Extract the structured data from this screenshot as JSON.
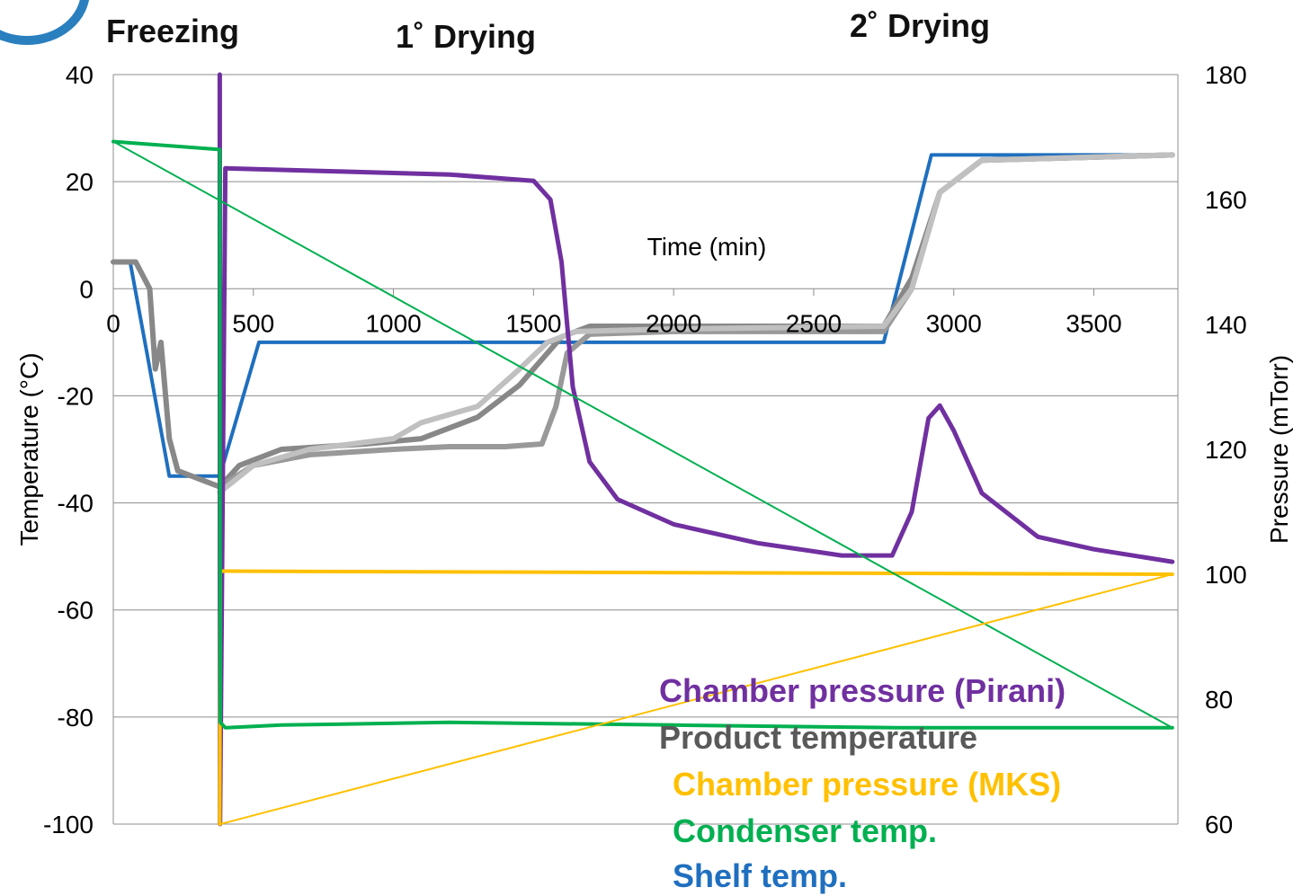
{
  "phases": [
    "Freezing",
    "1˚ Drying",
    "2˚ Drying"
  ],
  "chart_data": {
    "type": "line",
    "xlabel": "Time (min)",
    "ylabel_left": "Temperature (°C)",
    "ylabel_right": "Pressure (mTorr)",
    "xlim": [
      0,
      3800
    ],
    "ylim_left": [
      -100,
      40
    ],
    "ylim_right": [
      60,
      180
    ],
    "x_ticks": [
      0,
      500,
      1000,
      1500,
      2000,
      2500,
      3000,
      3500
    ],
    "y_ticks_left": [
      40,
      20,
      0,
      -20,
      -40,
      -60,
      -80,
      -100
    ],
    "y_ticks_right": [
      180,
      160,
      140,
      120,
      100,
      80,
      60
    ],
    "grid": true,
    "legend_position": "bottom-right",
    "series": [
      {
        "name": "Shelf temp.",
        "color": "#1f6fbf",
        "axis": "left",
        "x": [
          0,
          60,
          120,
          200,
          380,
          520,
          2750,
          2920,
          3780
        ],
        "values": [
          5,
          5,
          -12,
          -35,
          -35,
          -10,
          -10,
          25,
          25
        ]
      },
      {
        "name": "Product temperature",
        "color": "#888888",
        "axis": "left",
        "x": [
          0,
          80,
          130,
          150,
          170,
          200,
          230,
          380,
          450,
          600,
          900,
          1100,
          1300,
          1450,
          1600,
          1700,
          2000,
          2750,
          2850,
          2950,
          3100,
          3780
        ],
        "values": [
          5,
          5,
          0,
          -15,
          -10,
          -28,
          -34,
          -37,
          -33,
          -30,
          -29,
          -28,
          -24,
          -18,
          -9,
          -7,
          -7,
          -7,
          2,
          18,
          24,
          25
        ]
      },
      {
        "name": "Product temperature",
        "color": "#999999",
        "axis": "left",
        "x": [
          380,
          500,
          700,
          1000,
          1200,
          1400,
          1530,
          1580,
          1620,
          1700,
          2000,
          2750,
          2850,
          2950,
          3100,
          3780
        ],
        "values": [
          -37,
          -33,
          -31,
          -30,
          -29.5,
          -29.5,
          -29,
          -22,
          -12,
          -8.5,
          -8,
          -8,
          0,
          18,
          24,
          25
        ]
      },
      {
        "name": "Product temperature",
        "color": "#c0c0c0",
        "axis": "left",
        "x": [
          380,
          500,
          700,
          1000,
          1100,
          1300,
          1450,
          1550,
          1650,
          2000,
          2750,
          2850,
          2950,
          3100,
          3780
        ],
        "values": [
          -38,
          -33,
          -30,
          -28,
          -25,
          -22,
          -15,
          -10,
          -8,
          -7.5,
          -7,
          0,
          18,
          24,
          25
        ]
      },
      {
        "name": "Chamber pressure (Pirani)",
        "color": "#7030a0",
        "axis": "right",
        "x": [
          380,
          381,
          400,
          800,
          1200,
          1500,
          1560,
          1600,
          1640,
          1700,
          1800,
          2000,
          2300,
          2600,
          2780,
          2850,
          2910,
          2950,
          3000,
          3100,
          3300,
          3500,
          3780
        ],
        "values": [
          180,
          60,
          165,
          164.5,
          164,
          163,
          160,
          150,
          130,
          118,
          112,
          108,
          105,
          103,
          103,
          110,
          125,
          127,
          123,
          113,
          106,
          104,
          102
        ]
      },
      {
        "name": "Chamber pressure (MKS)",
        "color": "#ffc000",
        "axis": "right",
        "x": [
          380,
          382,
          3780
        ],
        "values": [
          60,
          100.5,
          100
        ]
      },
      {
        "name": "Condenser temp.",
        "color": "#00b050",
        "axis": "left",
        "x": [
          0,
          380,
          382,
          400,
          600,
          1200,
          2000,
          2800,
          3780
        ],
        "values": [
          27.5,
          26,
          -81,
          -82,
          -81.5,
          -81,
          -81.5,
          -82,
          -82
        ]
      }
    ]
  },
  "legend": [
    {
      "label": "Chamber pressure (Pirani)",
      "color": "#7030a0"
    },
    {
      "label": "Product temperature",
      "color": "#595959"
    },
    {
      "label": "Chamber pressure (MKS)",
      "color": "#ffc000"
    },
    {
      "label": "Condenser temp.",
      "color": "#00b050"
    },
    {
      "label": "Shelf temp.",
      "color": "#1f6fbf"
    }
  ]
}
